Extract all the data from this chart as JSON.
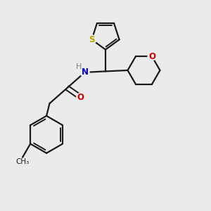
{
  "background_color": "#ebebeb",
  "bond_color": "#1a1a1a",
  "S_color": "#b8a000",
  "N_color": "#0000cc",
  "O_color": "#cc0000",
  "H_color": "#708090",
  "figsize": [
    3.0,
    3.0
  ],
  "dpi": 100,
  "xlim": [
    0,
    10
  ],
  "ylim": [
    0,
    10
  ]
}
